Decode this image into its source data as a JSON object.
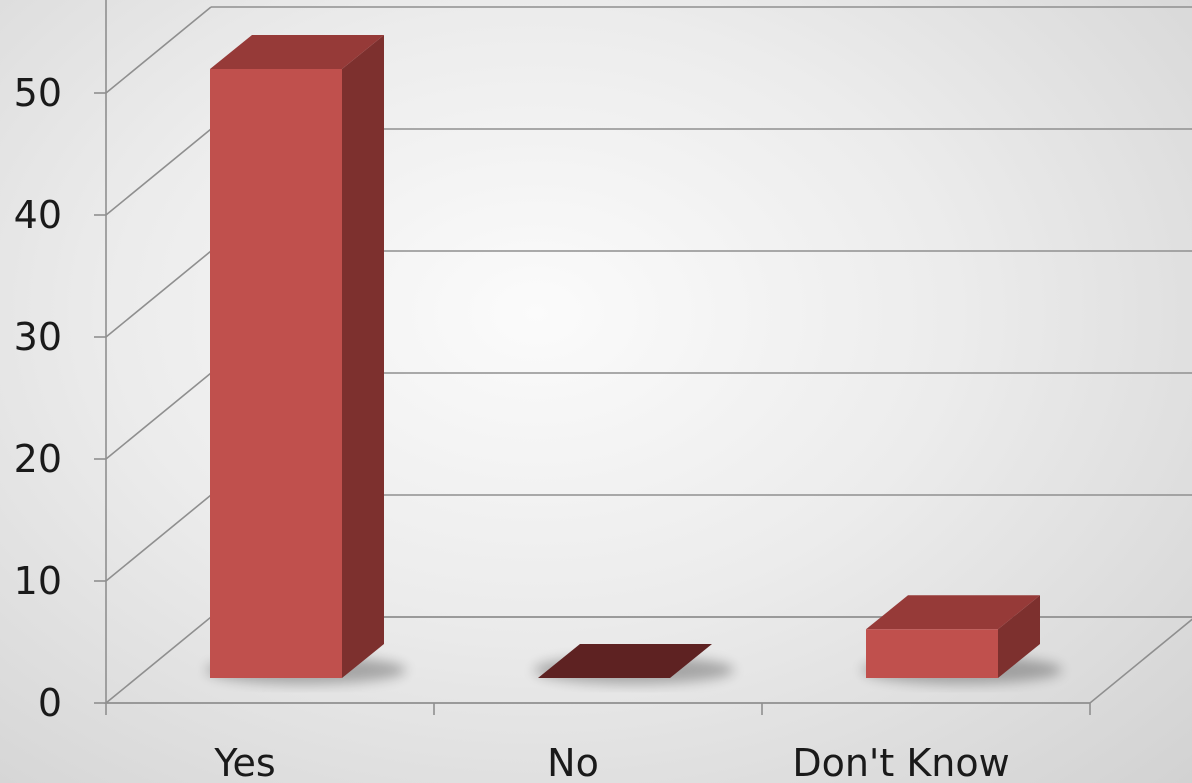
{
  "chart_data": {
    "type": "bar",
    "style": "3d-column",
    "categories": [
      "Yes",
      "No",
      "Don't Know"
    ],
    "values": [
      50,
      0,
      4
    ],
    "ylim": [
      0,
      50
    ],
    "yticks": [
      0,
      10,
      20,
      30,
      40,
      50
    ],
    "grid": true,
    "legend": "none",
    "title": "",
    "xlabel": "",
    "ylabel": ""
  },
  "colors": {
    "bar_front": "#c0504d",
    "bar_side": "#7d302e",
    "bar_top": "#963a38",
    "zero_bar": "#5e2222",
    "grid": "#8f8f8f"
  }
}
